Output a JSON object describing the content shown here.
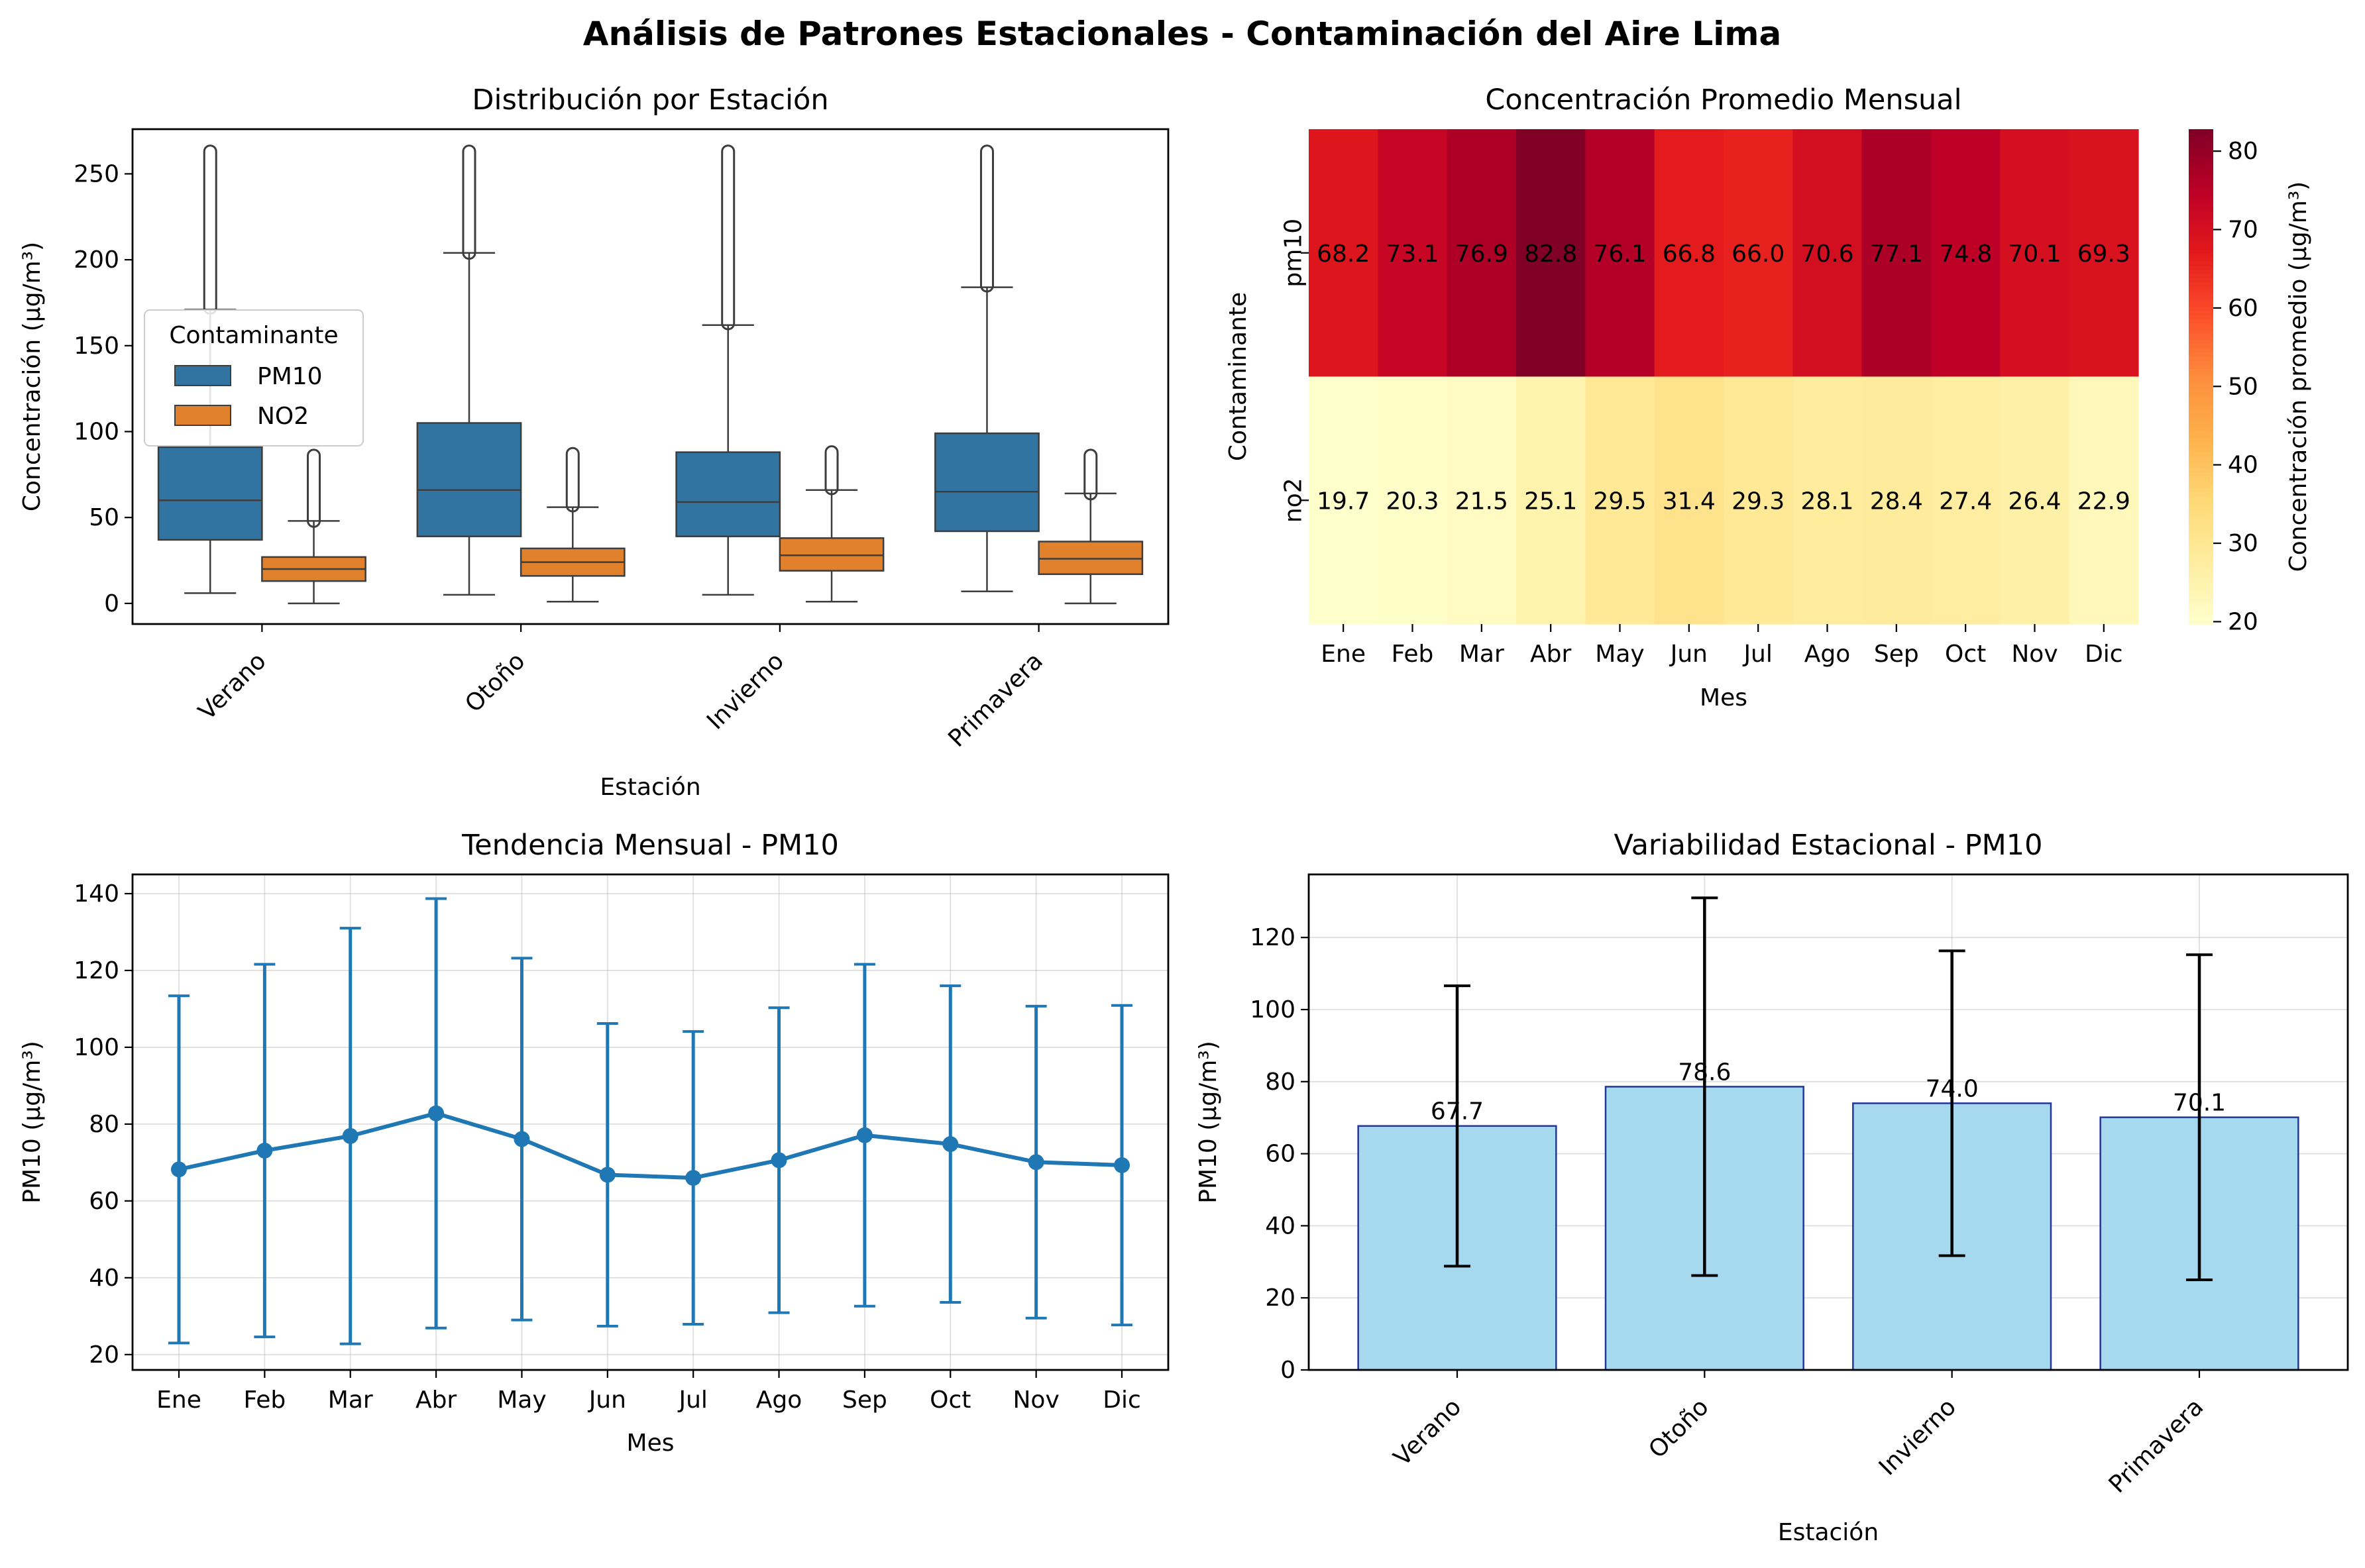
{
  "suptitle": "Análisis de Patrones Estacionales - Contaminación del Aire Lima",
  "chart_data": [
    {
      "type": "box",
      "title": "Distribución por Estación",
      "xlabel": "Estación",
      "ylabel": "Concentración (μg/m³)",
      "categories": [
        "Verano",
        "Otoño",
        "Invierno",
        "Primavera"
      ],
      "ylim": [
        -12,
        276
      ],
      "yticks": [
        0,
        50,
        100,
        150,
        200,
        250
      ],
      "legend": {
        "title": "Contaminante",
        "placement": "upper-left",
        "entries": [
          "PM10",
          "NO2"
        ]
      },
      "series": [
        {
          "name": "PM10",
          "color": "#3274a1",
          "boxes": [
            {
              "whisker_low": 6,
              "q1": 37,
              "median": 60,
              "q3": 91,
              "whisker_high": 171,
              "outlier_low": 172,
              "outlier_high": 263
            },
            {
              "whisker_low": 5,
              "q1": 39,
              "median": 66,
              "q3": 105,
              "whisker_high": 204,
              "outlier_low": 204,
              "outlier_high": 263
            },
            {
              "whisker_low": 5,
              "q1": 39,
              "median": 59,
              "q3": 88,
              "whisker_high": 162,
              "outlier_low": 163,
              "outlier_high": 263
            },
            {
              "whisker_low": 7,
              "q1": 42,
              "median": 65,
              "q3": 99,
              "whisker_high": 184,
              "outlier_low": 185,
              "outlier_high": 263
            }
          ]
        },
        {
          "name": "NO2",
          "color": "#e1812c",
          "boxes": [
            {
              "whisker_low": 0,
              "q1": 13,
              "median": 20,
              "q3": 27,
              "whisker_high": 48,
              "outlier_low": 48,
              "outlier_high": 86
            },
            {
              "whisker_low": 1,
              "q1": 16,
              "median": 24,
              "q3": 32,
              "whisker_high": 56,
              "outlier_low": 57,
              "outlier_high": 87
            },
            {
              "whisker_low": 1,
              "q1": 19,
              "median": 28,
              "q3": 38,
              "whisker_high": 66,
              "outlier_low": 67,
              "outlier_high": 88
            },
            {
              "whisker_low": 0,
              "q1": 17,
              "median": 26,
              "q3": 36,
              "whisker_high": 64,
              "outlier_low": 64,
              "outlier_high": 86
            }
          ]
        }
      ]
    },
    {
      "type": "heatmap",
      "title": "Concentración Promedio Mensual",
      "xlabel": "Mes",
      "ylabel": "Contaminante",
      "columns": [
        "Ene",
        "Feb",
        "Mar",
        "Abr",
        "May",
        "Jun",
        "Jul",
        "Ago",
        "Sep",
        "Oct",
        "Nov",
        "Dic"
      ],
      "rows": [
        "pm10",
        "no2"
      ],
      "values": [
        [
          68.2,
          73.1,
          76.9,
          82.8,
          76.1,
          66.8,
          66.0,
          70.6,
          77.1,
          74.8,
          70.1,
          69.3
        ],
        [
          19.7,
          20.3,
          21.5,
          25.1,
          29.5,
          31.4,
          29.3,
          28.1,
          28.4,
          27.4,
          26.4,
          22.9
        ]
      ],
      "colormap": "YlOrRd",
      "colorbar": {
        "label": "Concentración promedio (μg/m³)",
        "range": [
          19.7,
          82.8
        ],
        "ticks": [
          20,
          30,
          40,
          50,
          60,
          70,
          80
        ]
      }
    },
    {
      "type": "line",
      "title": "Tendencia Mensual - PM10",
      "xlabel": "Mes",
      "ylabel": "PM10 (μg/m³)",
      "categories": [
        "Ene",
        "Feb",
        "Mar",
        "Abr",
        "May",
        "Jun",
        "Jul",
        "Ago",
        "Sep",
        "Oct",
        "Nov",
        "Dic"
      ],
      "series": [
        {
          "name": "PM10",
          "color": "#1f77b4",
          "values": [
            68.2,
            73.1,
            76.9,
            82.8,
            76.1,
            66.8,
            66.0,
            70.6,
            77.1,
            74.8,
            70.1,
            69.3
          ],
          "error": [
            45.2,
            48.5,
            54.1,
            55.9,
            47.1,
            39.4,
            38.1,
            39.7,
            44.5,
            41.2,
            40.6,
            41.6
          ]
        }
      ],
      "ylim": [
        16,
        145
      ],
      "yticks": [
        20,
        40,
        60,
        80,
        100,
        120,
        140
      ],
      "grid": true
    },
    {
      "type": "bar",
      "title": "Variabilidad Estacional - PM10",
      "xlabel": "Estación",
      "ylabel": "PM10 (μg/m³)",
      "categories": [
        "Verano",
        "Otoño",
        "Invierno",
        "Primavera"
      ],
      "values": [
        67.7,
        78.6,
        74.0,
        70.1
      ],
      "labels": [
        "67.7",
        "78.6",
        "74.0",
        "70.1"
      ],
      "error": [
        38.9,
        52.4,
        42.3,
        45.1
      ],
      "ylim": [
        0,
        137.5
      ],
      "yticks": [
        0,
        20,
        40,
        60,
        80,
        100,
        120
      ],
      "bar_color": "#a6d9ee",
      "edge_color": "#23369c",
      "grid": true
    }
  ]
}
